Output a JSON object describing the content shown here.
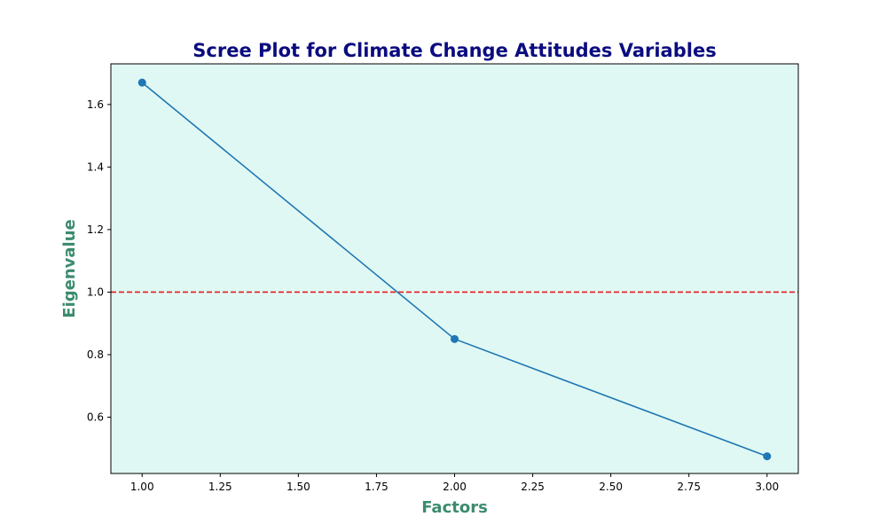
{
  "chart_data": {
    "type": "line",
    "title": "Scree Plot for Climate Change Attitudes Variables",
    "xlabel": "Factors",
    "ylabel": "Eigenvalue",
    "x": [
      1.0,
      2.0,
      3.0
    ],
    "values": [
      1.67,
      0.85,
      0.475
    ],
    "xlim": [
      0.9,
      3.1
    ],
    "ylim": [
      0.42,
      1.73
    ],
    "xticks": [
      "1.00",
      "1.25",
      "1.50",
      "1.75",
      "2.00",
      "2.25",
      "2.50",
      "2.75",
      "3.00"
    ],
    "yticks": [
      "0.6",
      "0.8",
      "1.0",
      "1.2",
      "1.4",
      "1.6"
    ],
    "reference_line": {
      "y": 1.0,
      "style": "dashed",
      "color": "#e41a1c"
    },
    "grid": false,
    "colors": {
      "line": "#1f77b4",
      "plot_background": "#e0f8f4",
      "title": "#0b0b80",
      "axis_label": "#3c8c6e"
    }
  }
}
